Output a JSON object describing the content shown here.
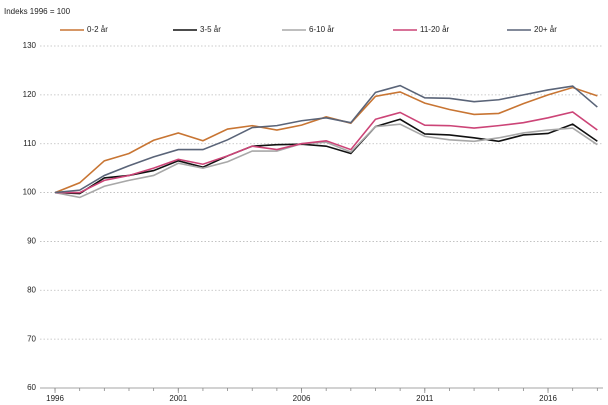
{
  "chart_data": {
    "type": "line",
    "y_label": "Indeks 1996 = 100",
    "x": [
      1996,
      1997,
      1998,
      1999,
      2000,
      2001,
      2002,
      2003,
      2004,
      2005,
      2006,
      2007,
      2008,
      2009,
      2010,
      2011,
      2012,
      2013,
      2014,
      2015,
      2016,
      2017,
      2018
    ],
    "xlim": [
      1995.39,
      2018.23
    ],
    "xticks": [
      1996,
      2001,
      2006,
      2011,
      2016
    ],
    "ylim": [
      60,
      130
    ],
    "yticks": [
      60,
      70,
      80,
      90,
      100,
      110,
      120,
      130
    ],
    "grid": true,
    "legend": "top",
    "series": [
      {
        "name": "0-2 år",
        "color": "#c87533",
        "values": [
          100,
          102,
          106.5,
          108,
          110.7,
          112.2,
          110.6,
          113,
          113.7,
          112.8,
          113.8,
          115.5,
          114.2,
          119.7,
          120.6,
          118.3,
          117,
          116,
          116.2,
          118.2,
          120,
          121.5,
          119.8
        ]
      },
      {
        "name": "3-5 år",
        "color": "#111111",
        "values": [
          100,
          99.8,
          103,
          103.5,
          104.5,
          106.5,
          105.2,
          107.5,
          109.5,
          109.8,
          109.9,
          109.5,
          108,
          113.5,
          115,
          112,
          111.8,
          111.2,
          110.5,
          111.8,
          112.1,
          114,
          110.5
        ]
      },
      {
        "name": "6-10 år",
        "color": "#a8a8a8",
        "values": [
          100,
          99,
          101.3,
          102.5,
          103.5,
          106,
          105,
          106.3,
          108.5,
          108.5,
          110,
          110.3,
          108.3,
          113.5,
          114,
          111.5,
          110.8,
          110.5,
          111.2,
          112.2,
          112.8,
          113.2,
          109.8
        ]
      },
      {
        "name": "11-20 år",
        "color": "#cc4477",
        "values": [
          100,
          100,
          102.5,
          103.5,
          105,
          106.8,
          105.8,
          107.5,
          109.5,
          108.8,
          110,
          110.6,
          108.8,
          115,
          116.4,
          113.8,
          113.7,
          113.2,
          113.7,
          114.3,
          115.3,
          116.5,
          112.8
        ]
      },
      {
        "name": "20+ år",
        "color": "#5a6478",
        "values": [
          100,
          100.5,
          103.5,
          105.5,
          107.3,
          108.8,
          108.8,
          110.8,
          113.3,
          113.7,
          114.7,
          115.3,
          114.3,
          120.5,
          121.9,
          119.4,
          119.3,
          118.6,
          119,
          120,
          121,
          121.8,
          117.5
        ]
      }
    ]
  }
}
